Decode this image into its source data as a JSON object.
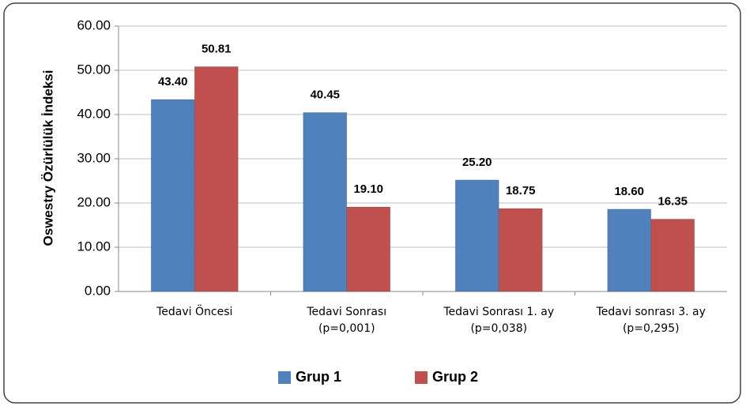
{
  "chart_data": {
    "type": "bar",
    "y_label": "Oswestry Özürlülük İndeksi",
    "categories": [
      "Tedavi Öncesi",
      "Tedavi Sonrası\n(p=0,001)",
      "Tedavi Sonrası 1. ay\n(p=0,038)",
      "Tedavi sonrası 3. ay\n(p=0,295)"
    ],
    "series": [
      {
        "name": "Grup 1",
        "color": "#4f81bd",
        "values": [
          43.4,
          40.45,
          25.2,
          18.6
        ],
        "value_labels": [
          "43.40",
          "40.45",
          "25.20",
          "18.60"
        ]
      },
      {
        "name": "Grup 2",
        "color": "#c0504d",
        "values": [
          50.81,
          19.1,
          18.75,
          16.35
        ],
        "value_labels": [
          "50.81",
          "19.10",
          "18.75",
          "16.35"
        ]
      }
    ],
    "ylim": [
      0,
      60
    ],
    "yticks": [
      {
        "value": 0,
        "label": "0.00"
      },
      {
        "value": 10,
        "label": "10.00"
      },
      {
        "value": 20,
        "label": "20.00"
      },
      {
        "value": 30,
        "label": "30.00"
      },
      {
        "value": 40,
        "label": "40.00"
      },
      {
        "value": 50,
        "label": "50.00"
      },
      {
        "value": 60,
        "label": "60.00"
      }
    ],
    "grid": true,
    "legend": "bottom"
  }
}
